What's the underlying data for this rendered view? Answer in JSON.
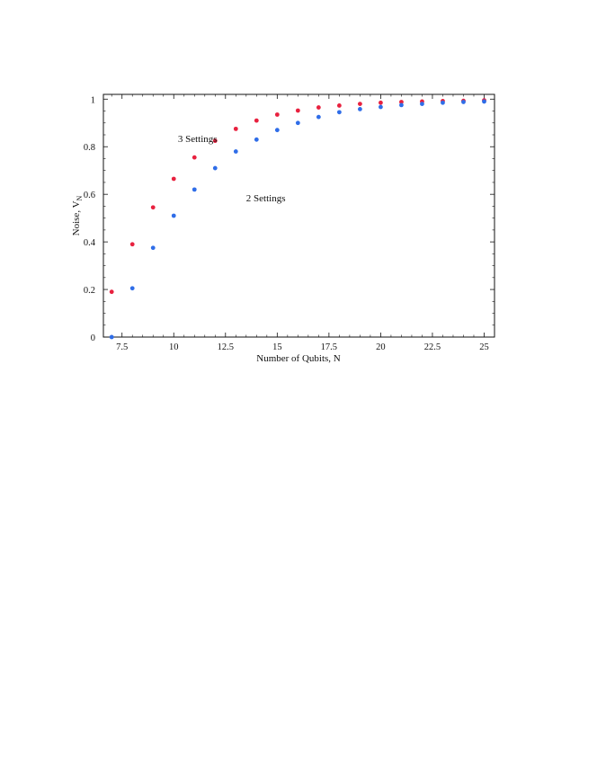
{
  "chart_data": {
    "type": "scatter",
    "xlabel": "Number of Qubits, N",
    "ylabel_main": "Noise, V",
    "ylabel_sub": "N",
    "xlim": [
      6.6,
      25.5
    ],
    "ylim": [
      0,
      1.02
    ],
    "x_ticks": [
      7.5,
      10,
      12.5,
      15,
      17.5,
      20,
      22.5,
      25
    ],
    "x_tick_labels": [
      "7.5",
      "10",
      "12.5",
      "15",
      "17.5",
      "20",
      "22.5",
      "25"
    ],
    "y_ticks": [
      0,
      0.2,
      0.4,
      0.6,
      0.8,
      1
    ],
    "y_tick_labels": [
      "0",
      "0.2",
      "0.4",
      "0.6",
      "0.8",
      "1"
    ],
    "grid": false,
    "series": [
      {
        "name": "3 Settings",
        "color": "#e8213f",
        "x": [
          7,
          8,
          9,
          10,
          11,
          12,
          13,
          14,
          15,
          16,
          17,
          18,
          19,
          20,
          21,
          22,
          23,
          24,
          25
        ],
        "y": [
          0.19,
          0.39,
          0.545,
          0.665,
          0.755,
          0.825,
          0.875,
          0.91,
          0.935,
          0.952,
          0.965,
          0.973,
          0.98,
          0.985,
          0.988,
          0.99,
          0.992,
          0.993,
          0.995
        ]
      },
      {
        "name": "2 Settings",
        "color": "#2f6de8",
        "x": [
          7,
          8,
          9,
          10,
          11,
          12,
          13,
          14,
          15,
          16,
          17,
          18,
          19,
          20,
          21,
          22,
          23,
          24,
          25
        ],
        "y": [
          0.0,
          0.205,
          0.375,
          0.51,
          0.62,
          0.71,
          0.78,
          0.83,
          0.87,
          0.9,
          0.925,
          0.945,
          0.958,
          0.967,
          0.975,
          0.98,
          0.985,
          0.988,
          0.99
        ]
      }
    ],
    "annotations": [
      {
        "text": "3 Settings",
        "x": 10.2,
        "y": 0.82
      },
      {
        "text": "2 Settings",
        "x": 13.5,
        "y": 0.57
      }
    ]
  }
}
